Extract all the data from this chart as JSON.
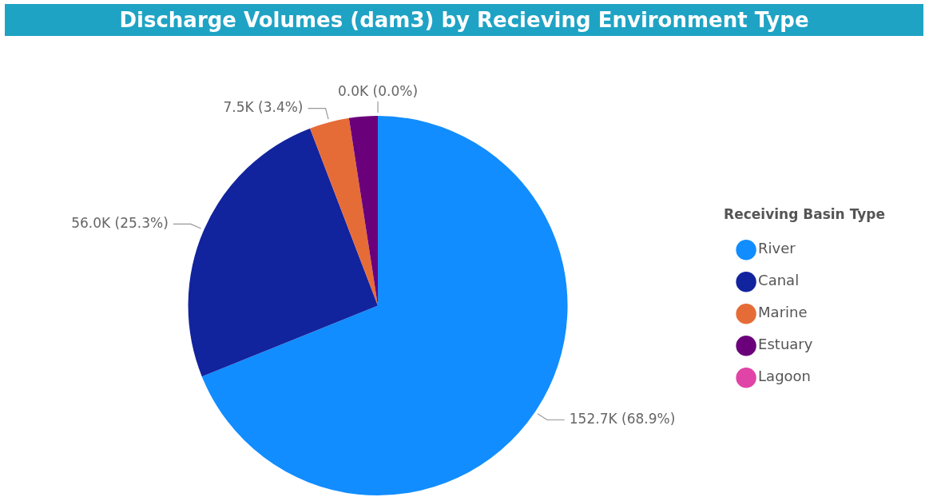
{
  "chart_data": {
    "type": "pie",
    "title": "Discharge Volumes (dam3) by Recieving Environment Type",
    "legend_title": "Receiving Basin Type",
    "legend": "right",
    "categories": [
      "River",
      "Canal",
      "Marine",
      "Estuary",
      "Lagoon"
    ],
    "values": [
      152700,
      56000,
      7500,
      5400,
      0
    ],
    "colors": [
      "#118dff",
      "#12239e",
      "#e66c37",
      "#6b007b",
      "#e044a7"
    ],
    "value_labels": [
      "152.7K (68.9%)",
      "56.0K (25.3%)",
      "7.5K (3.4%)",
      null,
      "0.0K (0.0%)"
    ]
  }
}
